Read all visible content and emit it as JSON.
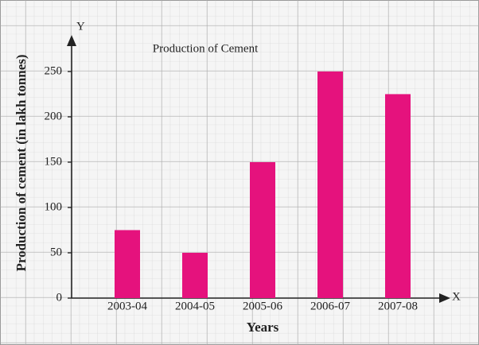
{
  "chart_data": {
    "type": "bar",
    "title": "Production of Cement",
    "x_label": "Years",
    "y_label": "Production of cement (in lakh tonnes)",
    "x_axis_symbol": "X",
    "y_axis_symbol": "Y",
    "categories": [
      "2003-04",
      "2004-05",
      "2005-06",
      "2006-07",
      "2007-08"
    ],
    "values": [
      75,
      50,
      150,
      250,
      225
    ],
    "color": "#e5127d",
    "ylim": [
      0,
      285
    ],
    "yticks": [
      0,
      50,
      100,
      150,
      200,
      250
    ],
    "grid": true
  }
}
